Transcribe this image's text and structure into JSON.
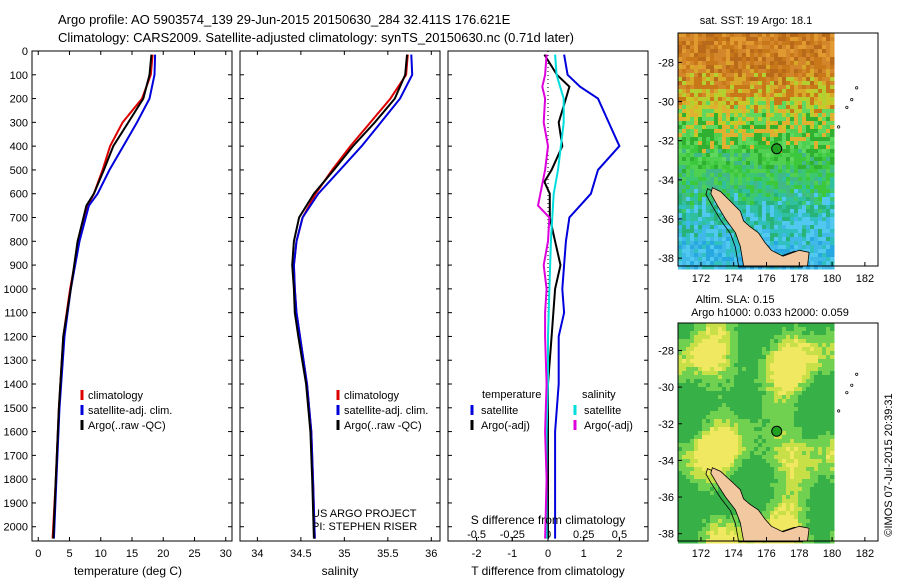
{
  "header": {
    "line1": "Argo profile: AO 5903574_139 29-Jun-2015 20150630_284 32.411S 176.621E",
    "line2": "Climatology: CARS2009. Satellite-adjusted climatology: synTS_20150630.nc (0.71d later)"
  },
  "colors": {
    "climatology": "#dd0000",
    "satellite": "#0000dd",
    "argo": "#000000",
    "salinity_satellite": "#00dddd",
    "salinity_argo": "#dd00dd"
  },
  "depth_ticks": [
    0,
    100,
    200,
    300,
    400,
    500,
    600,
    700,
    800,
    900,
    1000,
    1100,
    1200,
    1300,
    1400,
    1500,
    1600,
    1700,
    1800,
    1900,
    2000
  ],
  "chart_data": [
    {
      "type": "line",
      "id": "temperature",
      "xlabel": "temperature (deg C)",
      "xlim": [
        -1,
        31
      ],
      "ylim": [
        2060,
        0
      ],
      "x_ticks": [
        "0",
        "5",
        "10",
        "15",
        "20",
        "25",
        "30"
      ],
      "legend": [
        "climatology",
        "satellite-adj. clim.",
        "Argo(..raw -QC)"
      ],
      "series": [
        {
          "name": "climatology",
          "depth": [
            15,
            100,
            200,
            300,
            400,
            500,
            600,
            650,
            800,
            1000,
            1200,
            1500,
            1800,
            2050
          ],
          "values": [
            18.3,
            18.0,
            16.6,
            13.5,
            11.5,
            10.3,
            8.9,
            7.9,
            6.5,
            5.1,
            4.0,
            3.3,
            2.8,
            2.3
          ]
        },
        {
          "name": "satellite-adj. clim.",
          "depth": [
            15,
            100,
            200,
            300,
            400,
            500,
            600,
            650,
            800,
            1000,
            1200,
            1500,
            1800,
            2050
          ],
          "values": [
            18.7,
            18.6,
            17.8,
            15.8,
            13.6,
            11.4,
            9.5,
            8.1,
            6.6,
            5.2,
            4.2,
            3.4,
            2.9,
            2.5
          ]
        },
        {
          "name": "Argo(..raw -QC)",
          "depth": [
            15,
            100,
            200,
            300,
            400,
            500,
            600,
            650,
            800,
            1000,
            1200,
            1500,
            1800,
            2050
          ],
          "values": [
            18.1,
            17.8,
            16.8,
            14.4,
            12.0,
            10.5,
            8.9,
            7.7,
            6.3,
            5.2,
            4.0,
            3.3,
            2.8,
            2.4
          ]
        }
      ]
    },
    {
      "type": "line",
      "id": "salinity",
      "xlabel": "salinity",
      "xlim": [
        33.8,
        36.1
      ],
      "ylim": [
        2060,
        0
      ],
      "x_ticks": [
        "34",
        "34.5",
        "35",
        "35.5",
        "36"
      ],
      "legend": [
        "climatology",
        "satellite-adj. clim.",
        "Argo(..raw -QC)"
      ],
      "annotation": [
        "US ARGO PROJECT",
        "PI: STEPHEN RISER"
      ],
      "series": [
        {
          "name": "climatology",
          "depth": [
            15,
            100,
            200,
            300,
            400,
            500,
            600,
            700,
            800,
            900,
            1000,
            1100,
            1200,
            1400,
            1600,
            1800,
            2050
          ],
          "values": [
            35.73,
            35.71,
            35.53,
            35.3,
            35.07,
            34.86,
            34.67,
            34.52,
            34.45,
            34.42,
            34.43,
            34.45,
            34.49,
            34.57,
            34.62,
            34.64,
            34.66
          ]
        },
        {
          "name": "satellite-adj. clim.",
          "depth": [
            15,
            100,
            200,
            300,
            400,
            500,
            600,
            700,
            800,
            900,
            1000,
            1100,
            1200,
            1400,
            1600,
            1800,
            2050
          ],
          "values": [
            35.77,
            35.78,
            35.64,
            35.42,
            35.2,
            34.95,
            34.7,
            34.52,
            34.45,
            34.42,
            34.43,
            34.45,
            34.49,
            34.57,
            34.62,
            34.64,
            34.66
          ]
        },
        {
          "name": "Argo(..raw -QC)",
          "depth": [
            15,
            100,
            200,
            300,
            400,
            500,
            600,
            700,
            800,
            900,
            1000,
            1100,
            1200,
            1400,
            1600,
            1800,
            2050
          ],
          "values": [
            35.72,
            35.7,
            35.58,
            35.35,
            35.1,
            34.88,
            34.65,
            34.48,
            34.42,
            34.4,
            34.42,
            34.43,
            34.47,
            34.56,
            34.61,
            34.63,
            34.65
          ]
        }
      ]
    },
    {
      "type": "line",
      "id": "difference",
      "xlabel": "T difference from climatology",
      "xlabel_top": "S difference from climatology",
      "xlim": [
        -2.8,
        2.8
      ],
      "s_xlim": [
        -0.7,
        0.7
      ],
      "ylim": [
        2060,
        0
      ],
      "x_ticks": [
        {
          "v": -2,
          "t": "-2"
        },
        {
          "v": -1,
          "t": "-1"
        },
        {
          "v": 0,
          "t": "0"
        },
        {
          "v": 1,
          "t": "1"
        },
        {
          "v": 2,
          "t": "2"
        }
      ],
      "s_ticks": [
        {
          "v": -0.5,
          "t": "-0.5"
        },
        {
          "v": -0.25,
          "t": "-0.25"
        },
        {
          "v": 0,
          "t": "0"
        },
        {
          "v": 0.25,
          "t": "0.25"
        },
        {
          "v": 0.5,
          "t": "0.5"
        }
      ],
      "legend_titles": [
        "temperature",
        "salinity"
      ],
      "legend": [
        "satellite",
        "Argo(-adj)",
        "satellite",
        "Argo(-adj)"
      ],
      "series": [
        {
          "name": "satellite",
          "quantity": "temperature",
          "depth": [
            15,
            100,
            150,
            200,
            300,
            400,
            500,
            600,
            700,
            800,
            900,
            1000,
            1100,
            1200,
            1400,
            1600,
            1800,
            2050
          ],
          "values": [
            0.45,
            0.55,
            0.9,
            1.4,
            1.7,
            2.0,
            1.4,
            1.2,
            0.6,
            0.5,
            0.45,
            0.4,
            0.45,
            0.3,
            0.3,
            0.2,
            0.2,
            0.2
          ]
        },
        {
          "name": "Argo(-adj)",
          "quantity": "temperature",
          "depth": [
            15,
            100,
            150,
            200,
            300,
            400,
            500,
            550,
            600,
            700,
            800,
            900,
            1000,
            1200,
            1400,
            1600,
            1800,
            2050
          ],
          "values": [
            -0.1,
            0.25,
            0.6,
            0.5,
            0.3,
            0.4,
            0.1,
            -0.1,
            0.05,
            0.05,
            0.2,
            0.35,
            0.2,
            0.1,
            0.0,
            0.0,
            0.0,
            0.0
          ]
        },
        {
          "name": "satellite",
          "quantity": "salinity",
          "depth": [
            15,
            100,
            200,
            300,
            400,
            500,
            600,
            800,
            1000,
            1200,
            1400,
            1600,
            1800,
            2050
          ],
          "values": [
            0.05,
            0.06,
            0.11,
            0.11,
            0.09,
            0.07,
            0.04,
            0.02,
            0.01,
            0.0,
            0.0,
            -0.01,
            -0.01,
            -0.01
          ]
        },
        {
          "name": "Argo(-adj)",
          "quantity": "salinity",
          "depth": [
            15,
            100,
            150,
            200,
            300,
            400,
            500,
            650,
            700,
            800,
            900,
            1000,
            1100,
            1200,
            1400,
            1600,
            1800,
            2050
          ],
          "values": [
            -0.01,
            -0.02,
            -0.04,
            -0.02,
            -0.03,
            0.0,
            -0.02,
            -0.07,
            0.01,
            0.0,
            -0.03,
            -0.01,
            -0.02,
            -0.02,
            -0.01,
            -0.02,
            -0.01,
            -0.02
          ]
        }
      ]
    }
  ],
  "maps": [
    {
      "id": "sst-map",
      "title": "sat. SST: 19 Argo: 18.1",
      "x_ticks": [
        "172",
        "174",
        "176",
        "178",
        "180",
        "182"
      ],
      "y_ticks": [
        "-28",
        "-30",
        "-32",
        "-34",
        "-36",
        "-38"
      ],
      "float_lon": 176.621,
      "float_lat": -32.411
    },
    {
      "id": "sla-map",
      "title_line1": "Altim. SLA: 0.15",
      "title_line2": "Argo h1000: 0.033 h2000: 0.059",
      "x_ticks": [
        "172",
        "174",
        "176",
        "178",
        "180",
        "182"
      ],
      "y_ticks": [
        "-28",
        "-30",
        "-32",
        "-34",
        "-36",
        "-38"
      ],
      "float_lon": 176.621,
      "float_lat": -32.411
    }
  ],
  "footer": {
    "credit": "©IMOS 07-Jul-2015 20:39:31"
  }
}
